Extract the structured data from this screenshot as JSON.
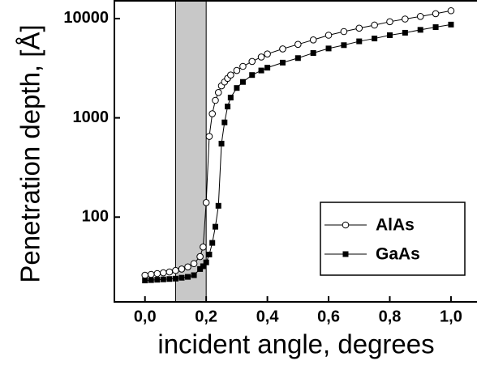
{
  "chart_data": {
    "type": "line",
    "y_label": "Penetration depth, [Å]",
    "x_label": "incident angle, degrees",
    "x": [
      0,
      0.02,
      0.04,
      0.06,
      0.08,
      0.1,
      0.12,
      0.14,
      0.16,
      0.18,
      0.19,
      0.2,
      0.21,
      0.22,
      0.23,
      0.24,
      0.25,
      0.26,
      0.27,
      0.28,
      0.3,
      0.32,
      0.35,
      0.38,
      0.4,
      0.45,
      0.5,
      0.55,
      0.6,
      0.65,
      0.7,
      0.75,
      0.8,
      0.85,
      0.9,
      0.95,
      1.0
    ],
    "series": [
      {
        "name": "AlAs",
        "color": "#000000",
        "marker": "open-circle",
        "values": [
          26,
          26.5,
          27,
          27.5,
          28,
          29,
          30,
          31.5,
          34,
          40,
          50,
          140,
          650,
          1100,
          1500,
          1800,
          2100,
          2300,
          2500,
          2700,
          3000,
          3300,
          3700,
          4100,
          4400,
          4950,
          5500,
          6100,
          6800,
          7400,
          8000,
          8600,
          9300,
          9900,
          10500,
          11200,
          12000
        ]
      },
      {
        "name": "GaAs",
        "color": "#000000",
        "marker": "filled-square",
        "values": [
          23,
          23.2,
          23.4,
          23.6,
          23.8,
          24,
          24.5,
          25,
          26,
          30,
          32,
          35,
          42,
          55,
          80,
          130,
          550,
          900,
          1300,
          1600,
          2000,
          2300,
          2700,
          3000,
          3200,
          3600,
          4000,
          4500,
          5000,
          5400,
          5900,
          6300,
          6800,
          7200,
          7700,
          8200,
          8700
        ]
      }
    ],
    "shaded_region": [
      0.1,
      0.2
    ],
    "xlim": [
      -0.1,
      1.085
    ],
    "xticks": [
      {
        "value": 0,
        "label": "0,0"
      },
      {
        "value": 0.2,
        "label": "0,2"
      },
      {
        "value": 0.4,
        "label": "0,4"
      },
      {
        "value": 0.6,
        "label": "0,6"
      },
      {
        "value": 0.8,
        "label": "0,8"
      },
      {
        "value": 1.0,
        "label": "1,0"
      }
    ],
    "ylim": [
      14,
      15100
    ],
    "yticks": [
      100,
      1000,
      10000
    ],
    "log_y": true,
    "legend": "lower right"
  }
}
